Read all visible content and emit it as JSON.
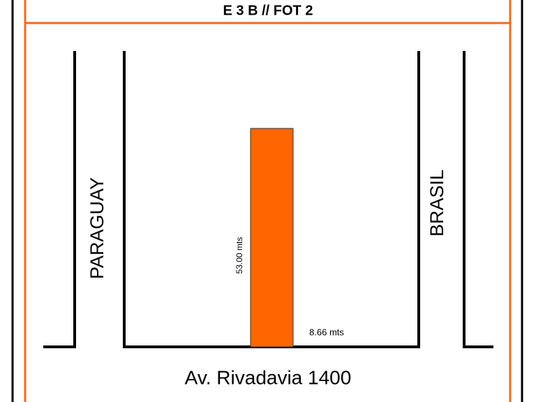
{
  "header": {
    "title": "E 3 B // FOT 2"
  },
  "streets": {
    "left": "PARAGUAY",
    "right": "BRASIL",
    "bottom": "Av. Rivadavia 1400"
  },
  "lot": {
    "depth": "53.00 mts",
    "frontage": "8.66 mts"
  }
}
